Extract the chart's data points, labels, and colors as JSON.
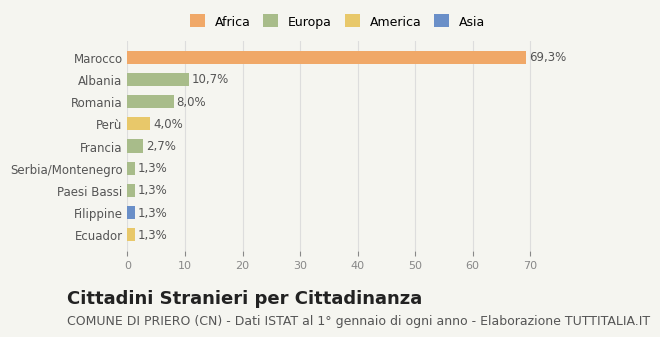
{
  "categories": [
    "Marocco",
    "Albania",
    "Romania",
    "Perù",
    "Francia",
    "Serbia/Montenegro",
    "Paesi Bassi",
    "Filippine",
    "Ecuador"
  ],
  "values": [
    69.3,
    10.7,
    8.0,
    4.0,
    2.7,
    1.3,
    1.3,
    1.3,
    1.3
  ],
  "labels": [
    "69,3%",
    "10,7%",
    "8,0%",
    "4,0%",
    "2,7%",
    "1,3%",
    "1,3%",
    "1,3%",
    "1,3%"
  ],
  "colors": [
    "#F0A868",
    "#A8BC8A",
    "#A8BC8A",
    "#E8C86A",
    "#A8BC8A",
    "#A8BC8A",
    "#A8BC8A",
    "#6A8FC8",
    "#E8C86A"
  ],
  "legend_labels": [
    "Africa",
    "Europa",
    "America",
    "Asia"
  ],
  "legend_colors": [
    "#F0A868",
    "#A8BC8A",
    "#E8C86A",
    "#6A8FC8"
  ],
  "xlim": [
    0,
    73
  ],
  "title": "Cittadini Stranieri per Cittadinanza",
  "subtitle": "COMUNE DI PRIERO (CN) - Dati ISTAT al 1° gennaio di ogni anno - Elaborazione TUTTITALIA.IT",
  "background_color": "#f5f5f0",
  "title_fontsize": 13,
  "subtitle_fontsize": 9,
  "label_fontsize": 8.5
}
